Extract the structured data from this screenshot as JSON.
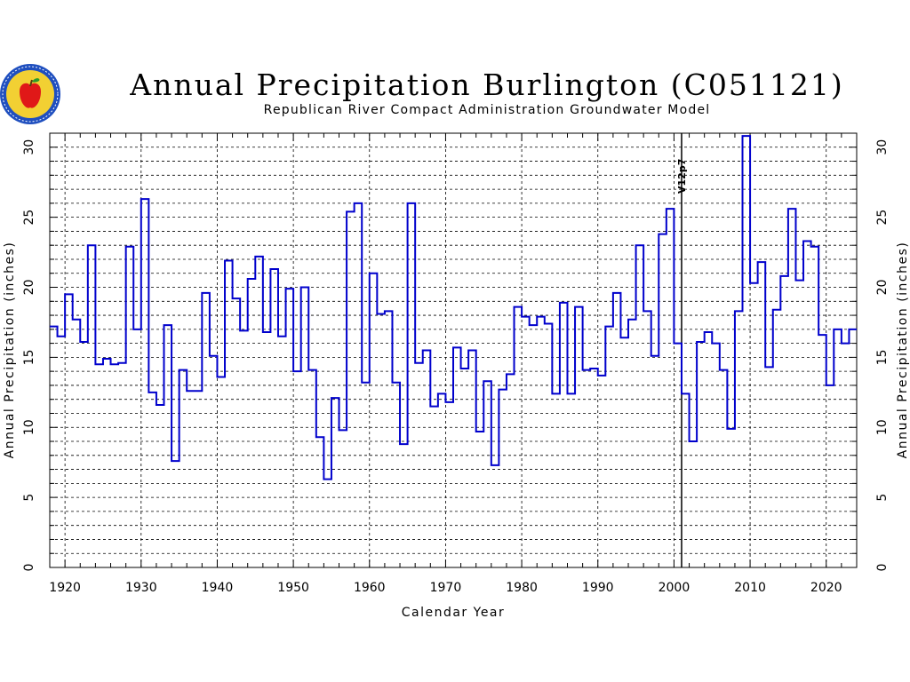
{
  "chart_data": {
    "type": "step-line",
    "title": "Annual Precipitation Burlington (C051121)",
    "subtitle": "Republican River Compact Administration Groundwater Model",
    "xlabel": "Calendar Year",
    "ylabel": "Annual Precipitation (inches)",
    "ylabel_right": "Annual Precipitation (inches)",
    "xlim": [
      1918,
      2024
    ],
    "ylim": [
      0,
      31
    ],
    "x_ticks": [
      1920,
      1930,
      1940,
      1950,
      1960,
      1970,
      1980,
      1990,
      2000,
      2010,
      2020
    ],
    "y_ticks": [
      0,
      5,
      10,
      15,
      20,
      25,
      30
    ],
    "grid": true,
    "series_color": "#0000cc",
    "annotation": {
      "x": 2001,
      "label": "V12p7"
    },
    "x": [
      1918,
      1919,
      1920,
      1921,
      1922,
      1923,
      1924,
      1925,
      1926,
      1927,
      1928,
      1929,
      1930,
      1931,
      1932,
      1933,
      1934,
      1935,
      1936,
      1937,
      1938,
      1939,
      1940,
      1941,
      1942,
      1943,
      1944,
      1945,
      1946,
      1947,
      1948,
      1949,
      1950,
      1951,
      1952,
      1953,
      1954,
      1955,
      1956,
      1957,
      1958,
      1959,
      1960,
      1961,
      1962,
      1963,
      1964,
      1965,
      1966,
      1967,
      1968,
      1969,
      1970,
      1971,
      1972,
      1973,
      1974,
      1975,
      1976,
      1977,
      1978,
      1979,
      1980,
      1981,
      1982,
      1983,
      1984,
      1985,
      1986,
      1987,
      1988,
      1989,
      1990,
      1991,
      1992,
      1993,
      1994,
      1995,
      1996,
      1997,
      1998,
      1999,
      2000,
      2001,
      2002,
      2003,
      2004,
      2005,
      2006,
      2007,
      2008,
      2009,
      2010,
      2011,
      2012,
      2013,
      2014,
      2015,
      2016,
      2017,
      2018,
      2019,
      2020,
      2021,
      2022,
      2023
    ],
    "values": [
      17.2,
      16.5,
      19.5,
      17.7,
      16.1,
      23.0,
      14.5,
      14.9,
      14.5,
      14.6,
      22.9,
      17.0,
      26.3,
      12.5,
      11.6,
      17.3,
      7.6,
      14.1,
      12.6,
      12.6,
      19.6,
      15.1,
      13.6,
      21.9,
      19.2,
      16.9,
      20.6,
      22.2,
      16.8,
      21.3,
      16.5,
      19.9,
      14.0,
      20.0,
      14.1,
      9.3,
      6.3,
      12.1,
      9.8,
      25.4,
      26.0,
      13.2,
      21.0,
      18.1,
      18.3,
      13.2,
      8.8,
      26.0,
      14.6,
      15.5,
      11.5,
      12.4,
      11.8,
      15.7,
      14.2,
      15.5,
      9.7,
      13.3,
      7.3,
      12.7,
      13.8,
      18.6,
      17.9,
      17.3,
      17.9,
      17.4,
      12.4,
      18.9,
      12.4,
      18.6,
      14.1,
      14.2,
      13.7,
      17.2,
      19.6,
      16.4,
      17.7,
      23.0,
      18.3,
      15.1,
      23.8,
      25.6,
      16.0,
      12.4,
      9.0,
      16.1,
      16.8,
      16.0,
      14.1,
      9.9,
      18.3,
      30.8,
      20.3,
      21.8,
      14.3,
      18.4,
      20.8,
      25.6,
      20.5,
      23.3,
      22.9,
      16.6,
      13.0,
      17.0,
      16.0,
      17.0
    ]
  }
}
